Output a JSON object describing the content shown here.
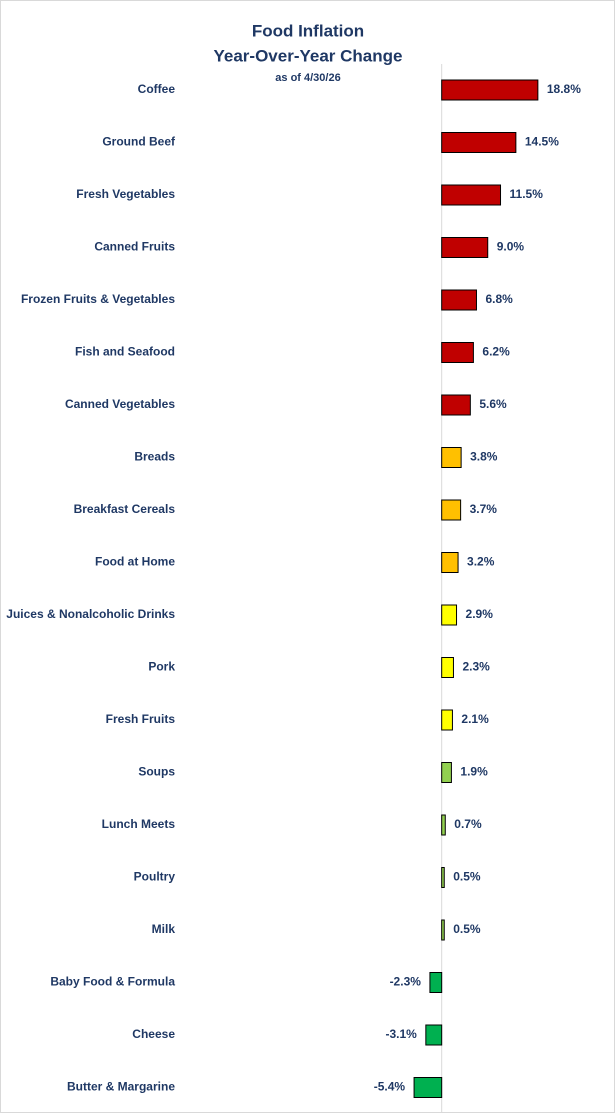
{
  "chart_data": {
    "type": "bar",
    "orientation": "horizontal",
    "title": [
      "Food Inflation",
      "Year-Over-Year Change"
    ],
    "subtitle": "as of 4/30/26",
    "categories": [
      "Coffee",
      "Ground Beef",
      "Fresh Vegetables",
      "Canned Fruits",
      "Frozen Fruits & Vegetables",
      "Fish and Seafood",
      "Canned Vegetables",
      "Breads",
      "Breakfast Cereals",
      "Food at Home",
      "Juices & Nonalcoholic Drinks",
      "Pork",
      "Fresh Fruits",
      "Soups",
      "Lunch Meets",
      "Poultry",
      "Milk",
      "Baby Food & Formula",
      "Cheese",
      "Butter & Margarine"
    ],
    "values": [
      18.8,
      14.5,
      11.5,
      9.0,
      6.8,
      6.2,
      5.6,
      3.8,
      3.7,
      3.2,
      2.9,
      2.3,
      2.1,
      1.9,
      0.7,
      0.5,
      0.5,
      -2.3,
      -3.1,
      -5.4
    ],
    "value_labels": [
      "18.8%",
      "14.5%",
      "11.5%",
      "9.0%",
      "6.8%",
      "6.2%",
      "5.6%",
      "3.8%",
      "3.7%",
      "3.2%",
      "2.9%",
      "2.3%",
      "2.1%",
      "1.9%",
      "0.7%",
      "0.5%",
      "0.5%",
      "-2.3%",
      "-3.1%",
      "-5.4%"
    ],
    "colors": [
      "#c00000",
      "#c00000",
      "#c00000",
      "#c00000",
      "#c00000",
      "#c00000",
      "#c00000",
      "#ffc000",
      "#ffc000",
      "#ffc000",
      "#ffff00",
      "#ffff00",
      "#ffff00",
      "#92d050",
      "#92d050",
      "#92d050",
      "#92d050",
      "#00b050",
      "#00b050",
      "#00b050"
    ],
    "xlim": [
      -6,
      20
    ]
  }
}
